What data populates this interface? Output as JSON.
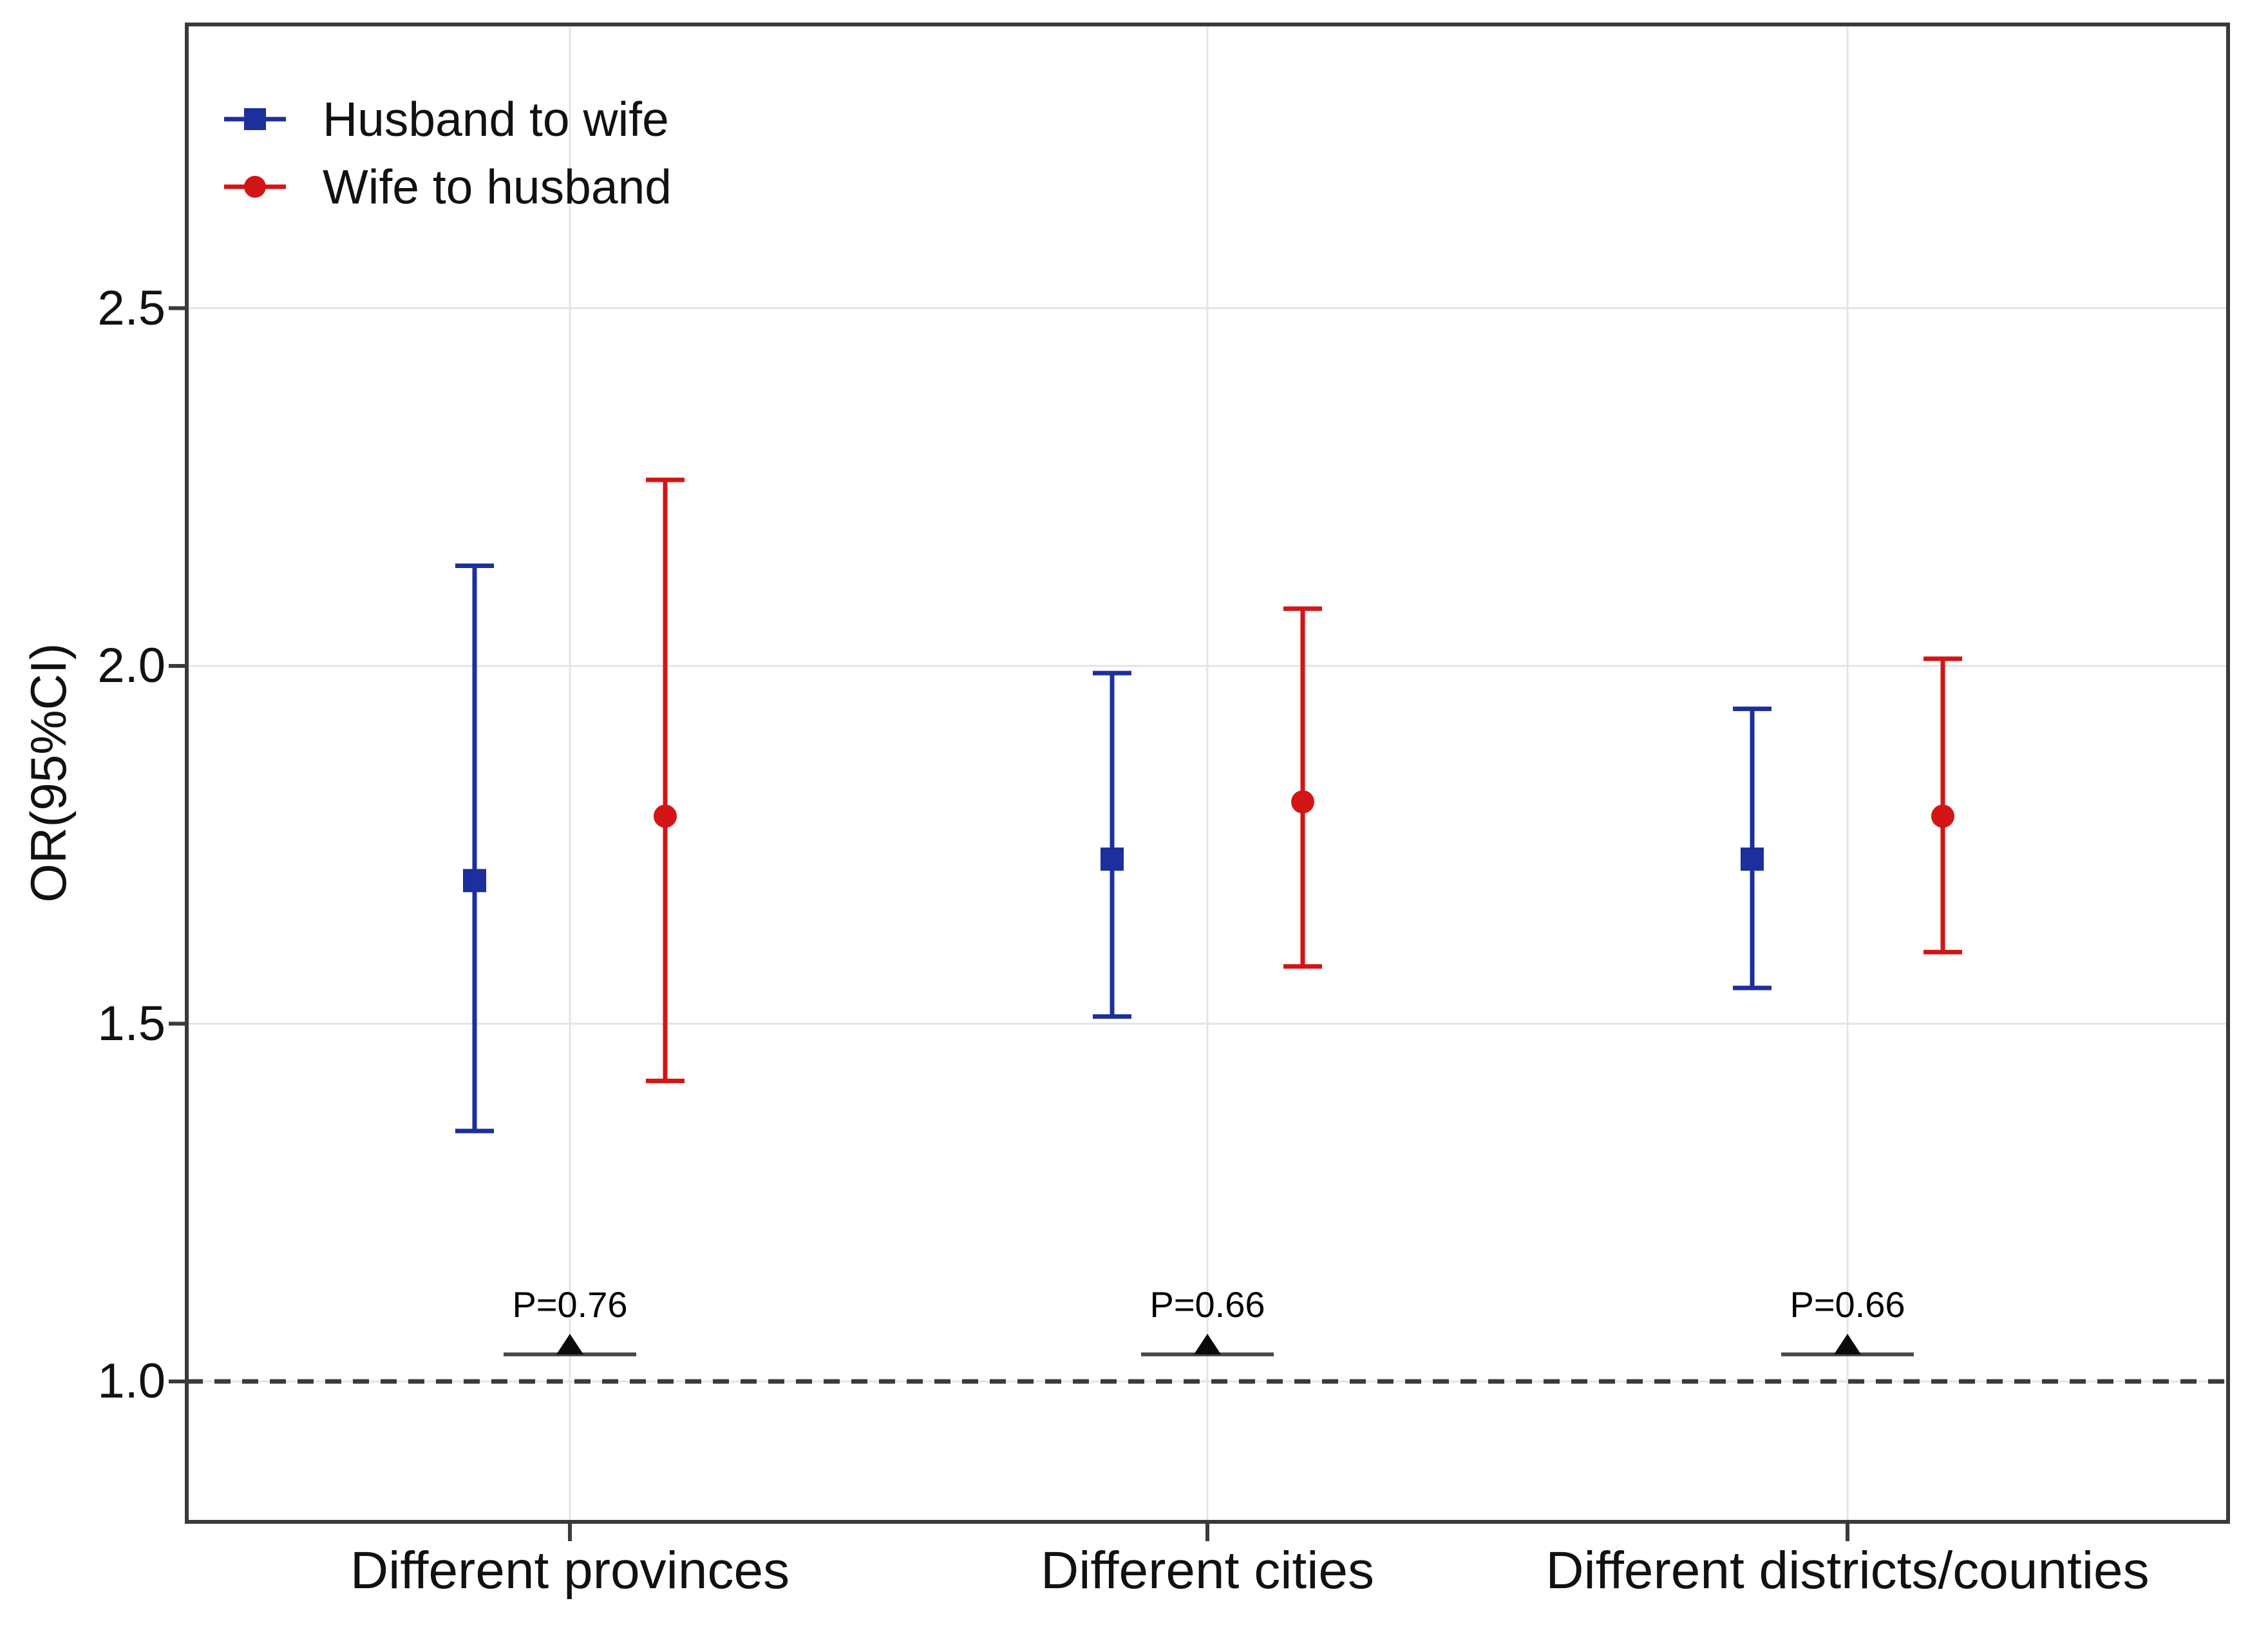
{
  "chart_data": {
    "type": "scatter",
    "subtype": "forest-plot-with-error-bars",
    "title": "",
    "xlabel": "",
    "ylabel": "OR(95%CI)",
    "categories": [
      "Different provinces",
      "Different cities",
      "Different districts/counties"
    ],
    "series": [
      {
        "name": "Husband to wife",
        "marker": "square",
        "color": "#1c2f9c",
        "values": [
          1.7,
          1.73,
          1.73
        ],
        "ci_low": [
          1.35,
          1.51,
          1.55
        ],
        "ci_high": [
          2.14,
          1.99,
          1.94
        ]
      },
      {
        "name": "Wife to husband",
        "marker": "circle",
        "color": "#d41515",
        "values": [
          1.79,
          1.81,
          1.79
        ],
        "ci_low": [
          1.42,
          1.58,
          1.6
        ],
        "ci_high": [
          2.26,
          2.08,
          2.01
        ]
      }
    ],
    "p_values": [
      "P=0.76",
      "P=0.66",
      "P=0.66"
    ],
    "y_tick_labels": [
      "2.5",
      "2.0",
      "1.5",
      "1.0"
    ],
    "y_tick_values": [
      2.5,
      2.0,
      1.5,
      1.0
    ],
    "ylim": [
      0.8,
      2.9
    ],
    "reference_line": {
      "value": 1.0,
      "style": "dashed"
    },
    "legend_position": "top-left",
    "grid": true,
    "colors": {
      "grid": "#e4e4e4",
      "frame": "#3a3a3a",
      "reference": "#3a3a3a",
      "annotation_line": "#4a4a4a",
      "annotation_triangle": "#0a0a0a",
      "text": "#111111"
    }
  }
}
